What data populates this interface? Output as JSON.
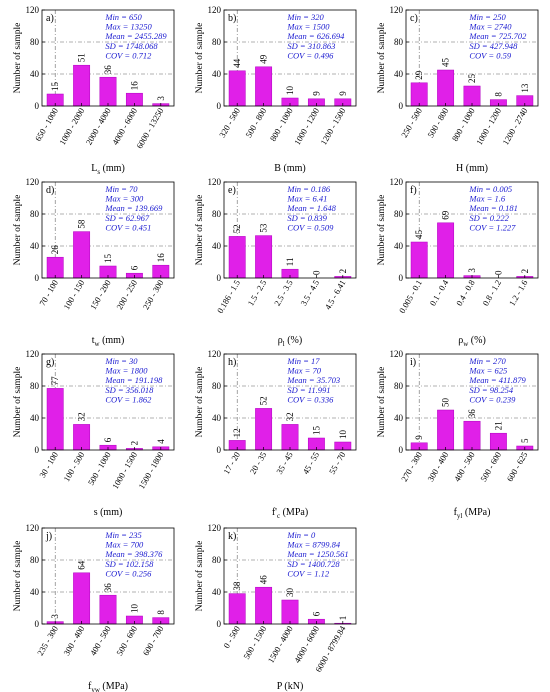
{
  "chart_data": [
    {
      "id": "a",
      "type": "bar",
      "panel_label": "a)",
      "ylabel": "Number of sample",
      "xlabel_main": "L",
      "xlabel_sub": "s",
      "xlabel_unit": "(mm)",
      "categories": [
        "650 - 1000",
        "1000 - 2000",
        "2000 - 4000",
        "4000 - 6000",
        "6000 - 13250"
      ],
      "values": [
        15,
        51,
        36,
        16,
        3
      ],
      "ylim": [
        0,
        120
      ],
      "yticks": [
        0,
        40,
        80,
        120
      ],
      "stats": [
        "Min = 650",
        "Max = 13250",
        "Mean = 2455.289",
        "SD = 1748.068",
        "COV = 0.712"
      ]
    },
    {
      "id": "b",
      "type": "bar",
      "panel_label": "b)",
      "ylabel": "Number of sample",
      "xlabel_main": "B",
      "xlabel_sub": "",
      "xlabel_unit": "(mm)",
      "categories": [
        "320 - 500",
        "500 - 800",
        "800 - 1000",
        "1000 - 1200",
        "1200 - 1500"
      ],
      "values": [
        44,
        49,
        10,
        9,
        9
      ],
      "ylim": [
        0,
        120
      ],
      "yticks": [
        0,
        40,
        80,
        120
      ],
      "stats": [
        "Min = 320",
        "Max = 1500",
        "Mean = 626.694",
        "SD = 310.863",
        "COV = 0.496"
      ]
    },
    {
      "id": "c",
      "type": "bar",
      "panel_label": "c)",
      "ylabel": "Number of sample",
      "xlabel_main": "H",
      "xlabel_sub": "",
      "xlabel_unit": "(mm)",
      "categories": [
        "250 - 500",
        "500 - 800",
        "800 - 1000",
        "1000 - 1200",
        "1200 - 2740"
      ],
      "values": [
        29,
        45,
        25,
        8,
        13
      ],
      "ylim": [
        0,
        120
      ],
      "yticks": [
        0,
        40,
        80,
        120
      ],
      "stats": [
        "Min = 250",
        "Max = 2740",
        "Mean = 725.702",
        "SD = 427.948",
        "COV = 0.59"
      ]
    },
    {
      "id": "d",
      "type": "bar",
      "panel_label": "d)",
      "ylabel": "Number of sample",
      "xlabel_main": "t",
      "xlabel_sub": "w",
      "xlabel_unit": "(mm)",
      "categories": [
        "70 - 100",
        "100 - 150",
        "150 - 200",
        "200 - 250",
        "250 - 300"
      ],
      "values": [
        26,
        58,
        15,
        6,
        16
      ],
      "ylim": [
        0,
        120
      ],
      "yticks": [
        0,
        40,
        80,
        120
      ],
      "stats": [
        "Min = 70",
        "Max = 300",
        "Mean = 139.669",
        "SD = 62.967",
        "COV = 0.451"
      ]
    },
    {
      "id": "e",
      "type": "bar",
      "panel_label": "e)",
      "ylabel": "Number of sample",
      "xlabel_main": "ρ",
      "xlabel_sub": "l",
      "xlabel_unit": "(%)",
      "categories": [
        "0.186 - 1.5",
        "1.5 - 2.5",
        "2.5 - 3.5",
        "3.5 - 4.5",
        "4.5 - 6.41"
      ],
      "values": [
        52,
        53,
        11,
        0,
        2
      ],
      "ylim": [
        0,
        120
      ],
      "yticks": [
        0,
        40,
        80,
        120
      ],
      "stats": [
        "Min = 0.186",
        "Max = 6.41",
        "Mean = 1.648",
        "SD = 0.839",
        "COV = 0.509"
      ]
    },
    {
      "id": "f",
      "type": "bar",
      "panel_label": "f)",
      "ylabel": "Number of sample",
      "xlabel_main": "ρ",
      "xlabel_sub": "w",
      "xlabel_unit": "(%)",
      "categories": [
        "0.005 - 0.1",
        "0.1 - 0.4",
        "0.4 - 0.8",
        "0.8 - 1.2",
        "1.2 - 1.6"
      ],
      "values": [
        45,
        69,
        3,
        0,
        2
      ],
      "ylim": [
        0,
        120
      ],
      "yticks": [
        0,
        40,
        80,
        120
      ],
      "stats": [
        "Min = 0.005",
        "Max = 1.6",
        "Mean = 0.181",
        "SD = 0.222",
        "COV = 1.227"
      ]
    },
    {
      "id": "g",
      "type": "bar",
      "panel_label": "g)",
      "ylabel": "Number of sample",
      "xlabel_main": "s",
      "xlabel_sub": "",
      "xlabel_unit": "(mm)",
      "categories": [
        "30 - 100",
        "100 - 500",
        "500 - 1000",
        "1000 - 1500",
        "1500 - 1800"
      ],
      "values": [
        77,
        32,
        6,
        2,
        4
      ],
      "ylim": [
        0,
        120
      ],
      "yticks": [
        0,
        40,
        80,
        120
      ],
      "stats": [
        "Min = 30",
        "Max = 1800",
        "Mean = 191.198",
        "SD = 356.018",
        "COV = 1.862"
      ]
    },
    {
      "id": "h",
      "type": "bar",
      "panel_label": "h)",
      "ylabel": "Number of sample",
      "xlabel_main": "f'",
      "xlabel_sub": "c",
      "xlabel_unit": "(MPa)",
      "categories": [
        "17 - 20",
        "20 - 35",
        "35 - 45",
        "45 - 55",
        "55 - 70"
      ],
      "values": [
        12,
        52,
        32,
        15,
        10
      ],
      "ylim": [
        0,
        120
      ],
      "yticks": [
        0,
        40,
        80,
        120
      ],
      "stats": [
        "Min = 17",
        "Max = 70",
        "Mean = 35.703",
        "SD = 11.991",
        "COV = 0.336"
      ]
    },
    {
      "id": "i",
      "type": "bar",
      "panel_label": "i)",
      "ylabel": "Number of sample",
      "xlabel_main": "f",
      "xlabel_sub": "yl",
      "xlabel_unit": "(MPa)",
      "categories": [
        "270 - 300",
        "300 - 400",
        "400 - 500",
        "500 - 600",
        "600 - 625"
      ],
      "values": [
        9,
        50,
        36,
        21,
        5
      ],
      "ylim": [
        0,
        120
      ],
      "yticks": [
        0,
        40,
        80,
        120
      ],
      "stats": [
        "Min = 270",
        "Max = 625",
        "Mean = 411.879",
        "SD = 98.254",
        "COV = 0.239"
      ]
    },
    {
      "id": "j",
      "type": "bar",
      "panel_label": "j)",
      "ylabel": "Number of sample",
      "xlabel_main": "f",
      "xlabel_sub": "yw",
      "xlabel_unit": "(MPa)",
      "categories": [
        "235 - 300",
        "300 - 400",
        "400 - 500",
        "500 - 600",
        "600 - 700"
      ],
      "values": [
        3,
        64,
        36,
        10,
        8
      ],
      "ylim": [
        0,
        120
      ],
      "yticks": [
        0,
        40,
        80,
        120
      ],
      "stats": [
        "Min = 235",
        "Max = 700",
        "Mean = 398.376",
        "SD = 102.158",
        "COV = 0.256"
      ]
    },
    {
      "id": "k",
      "type": "bar",
      "panel_label": "k)",
      "ylabel": "Number of sample",
      "xlabel_main": "P",
      "xlabel_sub": "",
      "xlabel_unit": "(kN)",
      "categories": [
        "0 - 500",
        "500 - 1500",
        "1500 - 4000",
        "4000 - 6000",
        "6000 - 8799.84"
      ],
      "values": [
        38,
        46,
        30,
        6,
        1
      ],
      "ylim": [
        0,
        120
      ],
      "yticks": [
        0,
        40,
        80,
        120
      ],
      "stats": [
        "Min = 0",
        "Max = 8799.84",
        "Mean = 1250.561",
        "SD = 1400.728",
        "COV = 1.12"
      ]
    }
  ],
  "colors": {
    "bar_fill": "#e020e8",
    "bar_edge": "#b000c0",
    "stats_text": "#1a1ad0",
    "axis": "#000000",
    "grid": "#666666"
  }
}
